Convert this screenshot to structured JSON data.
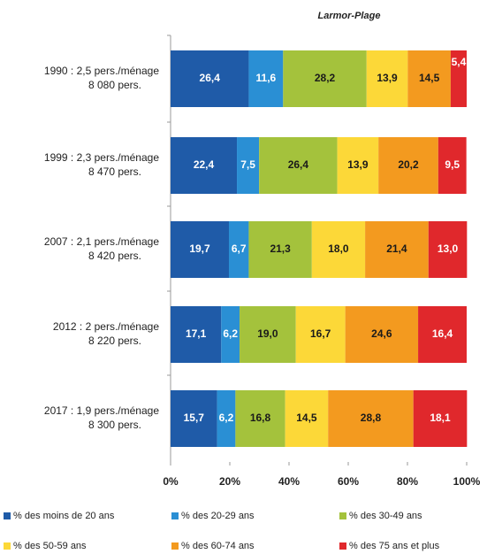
{
  "chart_data": {
    "type": "bar",
    "orientation": "horizontal",
    "stacked": true,
    "title": "Larmor-Plage",
    "categories": [
      [
        "1990 : 2,5 pers./ménage",
        "8 080 pers."
      ],
      [
        "1999 : 2,3 pers./ménage",
        "8 470 pers."
      ],
      [
        "2007 : 2,1 pers./ménage",
        "8 420 pers."
      ],
      [
        "2012 : 2 pers./ménage",
        "8 220 pers."
      ],
      [
        "2017 : 1,9 pers./ménage",
        "8 300 pers."
      ]
    ],
    "series": [
      {
        "name": "% des moins de 20 ans",
        "color": "#1f5ba8",
        "label_color": "#ffffff",
        "values": [
          26.4,
          22.4,
          19.7,
          17.1,
          15.7
        ],
        "value_labels": [
          "26,4",
          "22,4",
          "19,7",
          "17,1",
          "15,7"
        ]
      },
      {
        "name": "% des 20-29 ans",
        "color": "#2a8fd4",
        "label_color": "#ffffff",
        "values": [
          11.6,
          7.5,
          6.7,
          6.2,
          6.2
        ],
        "value_labels": [
          "11,6",
          "7,5",
          "6,7",
          "6,2",
          "6,2"
        ]
      },
      {
        "name": "% des 30-49 ans",
        "color": "#a4c23c",
        "label_color": "#1a1a1a",
        "values": [
          28.2,
          26.4,
          21.3,
          19.0,
          16.8
        ],
        "value_labels": [
          "28,2",
          "26,4",
          "21,3",
          "19,0",
          "16,8"
        ]
      },
      {
        "name": "% des 50-59 ans",
        "color": "#fcd838",
        "label_color": "#1a1a1a",
        "values": [
          13.9,
          13.9,
          18.0,
          16.7,
          14.5
        ],
        "value_labels": [
          "13,9",
          "13,9",
          "18,0",
          "16,7",
          "14,5"
        ]
      },
      {
        "name": "% des 60-74 ans",
        "color": "#f39a1f",
        "label_color": "#1a1a1a",
        "values": [
          14.5,
          20.2,
          21.4,
          24.6,
          28.8
        ],
        "value_labels": [
          "14,5",
          "20,2",
          "21,4",
          "24,6",
          "28,8"
        ]
      },
      {
        "name": "% des 75 ans et plus",
        "color": "#e0282c",
        "label_color": "#ffffff",
        "values": [
          5.4,
          9.5,
          13.0,
          16.4,
          18.1
        ],
        "value_labels": [
          "5,4",
          "9,5",
          "13,0",
          "16,4",
          "18,1"
        ]
      }
    ],
    "xlim": [
      0,
      100
    ],
    "xticks": [
      {
        "value": 0,
        "label": "0%"
      },
      {
        "value": 20,
        "label": "20%"
      },
      {
        "value": 40,
        "label": "40%"
      },
      {
        "value": 60,
        "label": "60%"
      },
      {
        "value": 80,
        "label": "80%"
      },
      {
        "value": 100,
        "label": "100%"
      }
    ]
  }
}
